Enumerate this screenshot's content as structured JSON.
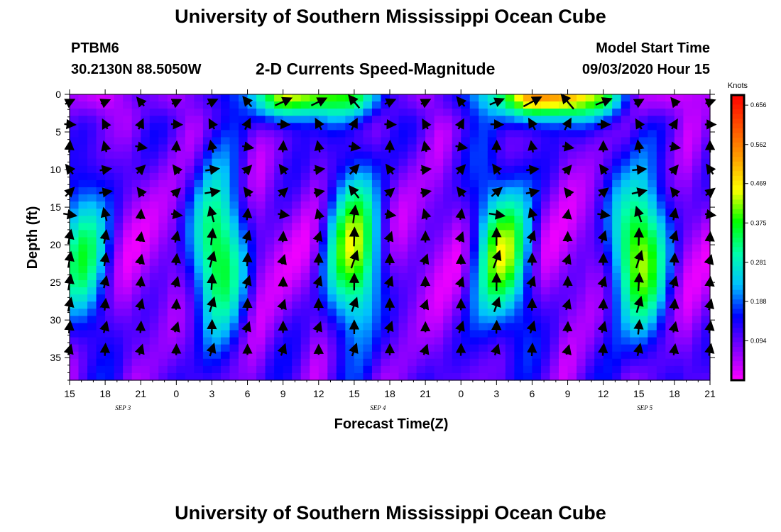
{
  "page": {
    "title": "University of Southern Mississippi Ocean Cube",
    "footer_title": "University of Southern Mississippi Ocean Cube",
    "station": "PTBM6",
    "location": "30.2130N 88.5050W",
    "plot_title": "2-D Currents Speed-Magnitude",
    "model_start_label": "Model Start Time",
    "model_start_value": "09/03/2020 Hour 15"
  },
  "chart_data": {
    "type": "heatmap",
    "title": "2-D Currents Speed-Magnitude",
    "xlabel": "Forecast Time(Z)",
    "ylabel": "Depth (ft)",
    "x_tick_labels": [
      "15",
      "18",
      "21",
      "0",
      "3",
      "6",
      "9",
      "12",
      "15",
      "18",
      "21",
      "0",
      "3",
      "6",
      "9",
      "12",
      "15",
      "18",
      "21"
    ],
    "date_labels": [
      "SEP 3",
      "SEP 4",
      "SEP 5"
    ],
    "x_hours_from_start": [
      0,
      54
    ],
    "ylim": [
      0,
      38
    ],
    "y_ticks": [
      0,
      5,
      10,
      15,
      20,
      25,
      30,
      35
    ],
    "y_inverted": true,
    "colorbar": {
      "unit": "Knots",
      "min": 0.0,
      "max": 0.68,
      "tick_values": [
        0.094,
        0.188,
        0.281,
        0.375,
        0.469,
        0.562,
        0.656
      ],
      "tick_labels": [
        "0.094",
        "0.188",
        "0.281",
        "0.375",
        "0.469",
        "0.562",
        "0.656"
      ],
      "colors": [
        "#ff00ff",
        "#8000ff",
        "#0000ff",
        "#00c0ff",
        "#00ffaa",
        "#00ff00",
        "#ffff00",
        "#ffa000",
        "#ff5000",
        "#ff0000"
      ]
    },
    "surface_band": [
      {
        "hour": 0,
        "speed": 0.06
      },
      {
        "hour": 3,
        "speed": 0.02
      },
      {
        "hour": 6,
        "speed": 0.1
      },
      {
        "hour": 9,
        "speed": 0.05
      },
      {
        "hour": 12,
        "speed": 0.12
      },
      {
        "hour": 15,
        "speed": 0.2
      },
      {
        "hour": 18,
        "speed": 0.46
      },
      {
        "hour": 21,
        "speed": 0.4
      },
      {
        "hour": 24,
        "speed": 0.38
      },
      {
        "hour": 27,
        "speed": 0.12
      },
      {
        "hour": 30,
        "speed": 0.05
      },
      {
        "hour": 33,
        "speed": 0.15
      },
      {
        "hour": 36,
        "speed": 0.3
      },
      {
        "hour": 39,
        "speed": 0.56
      },
      {
        "hour": 42,
        "speed": 0.52
      },
      {
        "hour": 45,
        "speed": 0.4
      },
      {
        "hour": 48,
        "speed": 0.05
      },
      {
        "hour": 51,
        "speed": 0.03
      },
      {
        "hour": 54,
        "speed": 0.05
      }
    ],
    "mid_depth_peaks": [
      {
        "hour": 1,
        "speed": 0.33
      },
      {
        "hour": 12.5,
        "speed": 0.39
      },
      {
        "hour": 24,
        "speed": 0.43
      },
      {
        "hour": 36.5,
        "speed": 0.42
      },
      {
        "hour": 48,
        "speed": 0.44
      }
    ],
    "vectors_spacing_hours": 3,
    "vector_depths": [
      1,
      4,
      7,
      10,
      13,
      16,
      19,
      22,
      25,
      28,
      31,
      34
    ]
  }
}
